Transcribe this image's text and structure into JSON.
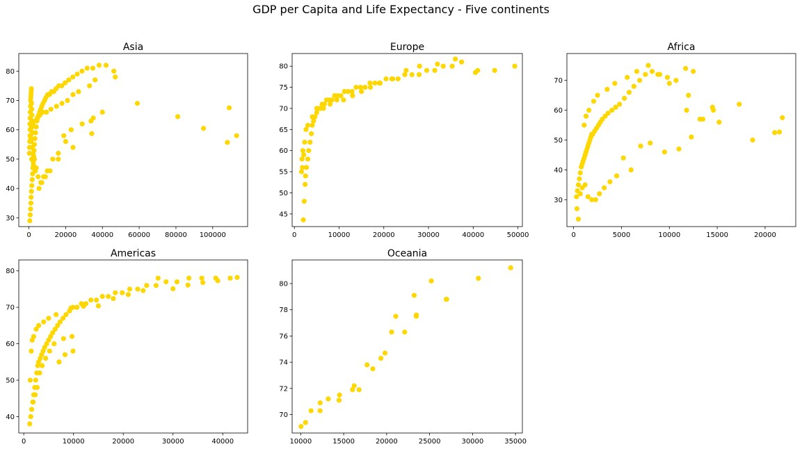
{
  "figure": {
    "title": "GDP per Capita and Life Expectancy - Five continents"
  },
  "chart_data": [
    {
      "type": "scatter",
      "title": "Asia",
      "xlabel": "",
      "ylabel": "",
      "color": "#ffd700",
      "xlim": [
        -5500,
        119000
      ],
      "ylim": [
        27,
        86
      ],
      "xticks": [
        0,
        20000,
        40000,
        60000,
        80000,
        100000
      ],
      "yticks": [
        30,
        40,
        50,
        60,
        70,
        80
      ],
      "grid": false,
      "x": [
        500,
        700,
        900,
        1100,
        1200,
        1400,
        1600,
        1800,
        2000,
        2200,
        2400,
        2600,
        2800,
        3000,
        3300,
        3600,
        4000,
        4400,
        4800,
        5300,
        5800,
        6400,
        7000,
        7700,
        8500,
        9300,
        10200,
        11200,
        12300,
        13500,
        14800,
        16300,
        17900,
        19700,
        21700,
        23900,
        26300,
        28900,
        31700,
        34800,
        38200,
        42000,
        46200,
        47000,
        36000,
        33000,
        27000,
        24000,
        21000,
        18000,
        15000,
        12000,
        9500,
        7500,
        6000,
        4500,
        3200,
        2100,
        1300,
        800,
        600,
        450,
        350,
        300,
        1000,
        1500,
        2500,
        3500,
        5000,
        6500,
        8000,
        10000,
        13000,
        16000,
        19000,
        23000,
        29000,
        35000,
        40000,
        59000,
        81000,
        95000,
        108000,
        109000,
        113000,
        33800,
        34200,
        24000,
        20000,
        16000,
        11500,
        9000,
        7000,
        5500,
        4000,
        3000,
        2300,
        1700,
        1200,
        900,
        700,
        550,
        650,
        750,
        850,
        950,
        1050,
        1150,
        1250,
        1350,
        1450,
        1550,
        1650,
        1750,
        1850,
        1950
      ],
      "y": [
        29,
        31,
        33,
        35,
        37,
        39,
        41,
        43,
        45,
        47,
        49,
        51,
        53,
        55,
        57,
        59,
        61,
        63,
        64,
        65,
        66,
        67,
        68,
        69,
        70,
        71,
        72,
        72,
        73,
        73,
        74,
        75,
        75,
        76,
        77,
        78,
        79,
        80,
        81,
        81,
        82,
        82,
        80,
        78,
        77,
        75,
        73,
        72,
        70,
        69,
        68,
        67,
        66,
        66,
        65,
        64,
        63,
        62,
        61,
        60,
        58,
        56,
        54,
        52,
        57,
        50,
        48,
        46,
        44,
        42,
        44,
        46,
        50,
        52,
        58,
        60,
        62,
        64,
        66,
        69,
        64.5,
        60.5,
        55.7,
        67.5,
        58,
        63,
        58.7,
        54,
        56,
        50,
        46,
        44,
        42,
        40,
        47,
        50,
        52,
        54,
        56,
        58,
        60,
        62,
        64,
        66,
        68,
        70,
        71,
        72,
        73,
        74,
        69,
        67,
        65,
        63,
        61,
        59
      ]
    },
    {
      "type": "scatter",
      "title": "Europe",
      "xlabel": "",
      "ylabel": "",
      "color": "#ffd700",
      "xlim": [
        -500,
        51000
      ],
      "ylim": [
        42,
        83
      ],
      "xticks": [
        0,
        10000,
        20000,
        30000,
        40000,
        50000
      ],
      "yticks": [
        45,
        50,
        55,
        60,
        65,
        70,
        75,
        80
      ],
      "grid": false,
      "x": [
        2000,
        2200,
        2400,
        2500,
        2700,
        3000,
        3200,
        3500,
        3800,
        4000,
        4300,
        4600,
        5000,
        5400,
        5800,
        6200,
        6700,
        7200,
        7800,
        8400,
        9000,
        9700,
        10400,
        11200,
        12000,
        12900,
        13800,
        14800,
        15800,
        16900,
        18000,
        19200,
        20500,
        21800,
        23200,
        24700,
        26300,
        27900,
        29600,
        31400,
        33300,
        35300,
        37400,
        41000,
        44800,
        49300,
        40500,
        36000,
        32000,
        28000,
        25000,
        22000,
        19000,
        17000,
        15000,
        13000,
        11000,
        9500,
        8000,
        6500,
        5000,
        4000,
        3000,
        2600,
        2300,
        1900,
        1700,
        1600,
        1800,
        2100
      ],
      "y": [
        43.6,
        48,
        52,
        54,
        56,
        58,
        60,
        62,
        64,
        66,
        67,
        68,
        69,
        70,
        70,
        71,
        71,
        72,
        72,
        72,
        73,
        73,
        73,
        74,
        74,
        74,
        75,
        75,
        75,
        76,
        76,
        76,
        77,
        77,
        77,
        78,
        78,
        78,
        79,
        79,
        80,
        80,
        81,
        79,
        79,
        80,
        78.5,
        81.7,
        80.5,
        80,
        79,
        77,
        76,
        75,
        74,
        73,
        72,
        72,
        71,
        70,
        70,
        68,
        66,
        65,
        62,
        60,
        58,
        55,
        56,
        59
      ]
    },
    {
      "type": "scatter",
      "title": "Africa",
      "xlabel": "",
      "ylabel": "",
      "color": "#ffd700",
      "xlim": [
        -700,
        23200
      ],
      "ylim": [
        21,
        79
      ],
      "xticks": [
        0,
        5000,
        10000,
        15000,
        20000
      ],
      "yticks": [
        30,
        40,
        50,
        60,
        70
      ],
      "grid": false,
      "x": [
        300,
        400,
        500,
        600,
        700,
        800,
        900,
        1000,
        1100,
        1200,
        1300,
        1400,
        1500,
        1600,
        1700,
        1800,
        1900,
        2000,
        2200,
        2400,
        2600,
        2800,
        3000,
        3300,
        3600,
        4000,
        4400,
        4800,
        5300,
        5800,
        6300,
        6900,
        7500,
        8200,
        9000,
        9800,
        10700,
        11700,
        12500,
        13500,
        14500,
        15200,
        17300,
        18700,
        21000,
        21500,
        21800,
        12000,
        11000,
        9500,
        8000,
        7000,
        6000,
        5200,
        4500,
        3800,
        3200,
        2700,
        2300,
        1900,
        1500,
        1200,
        900,
        700,
        500,
        350,
        1100,
        1300,
        1600,
        2100,
        2500,
        3500,
        4300,
        5600,
        6600,
        7800,
        8800,
        10000,
        11800,
        12300,
        13200,
        14600
      ],
      "y": [
        31,
        33,
        35,
        37,
        39,
        41,
        42,
        43,
        44,
        45,
        46,
        47,
        48,
        49,
        50,
        51,
        52,
        52,
        53,
        54,
        55,
        56,
        57,
        58,
        59,
        60,
        61,
        62,
        64,
        66,
        68,
        70,
        72,
        73,
        72,
        71,
        70,
        74,
        73,
        57,
        61,
        56,
        62,
        50,
        52.5,
        52.7,
        57.5,
        65,
        47,
        46,
        49,
        48,
        40,
        44,
        38,
        36,
        34,
        32,
        30,
        30,
        31,
        35,
        34,
        32,
        23.5,
        27,
        55,
        58,
        60,
        63,
        65,
        67,
        69,
        71,
        73,
        75,
        72,
        69,
        60,
        51,
        57,
        60
      ]
    },
    {
      "type": "scatter",
      "title": "Americas",
      "xlabel": "",
      "ylabel": "",
      "color": "#ffd700",
      "xlim": [
        -1000,
        45000
      ],
      "ylim": [
        35.5,
        83
      ],
      "xticks": [
        0,
        10000,
        20000,
        30000,
        40000
      ],
      "yticks": [
        40,
        50,
        60,
        70,
        80
      ],
      "grid": false,
      "x": [
        1200,
        1400,
        1600,
        1800,
        2000,
        2200,
        2400,
        2600,
        2800,
        3000,
        3300,
        3600,
        3900,
        4200,
        4600,
        5000,
        5400,
        5800,
        6300,
        6800,
        7300,
        7900,
        8500,
        9200,
        9900,
        10700,
        11600,
        12500,
        13500,
        14600,
        15800,
        17000,
        18400,
        19800,
        21300,
        22900,
        24700,
        26600,
        28600,
        30800,
        33200,
        35800,
        38600,
        41500,
        42900,
        39000,
        36000,
        33000,
        30000,
        27000,
        24000,
        21000,
        18000,
        15000,
        12000,
        9500,
        8000,
        6500,
        5000,
        4000,
        3000,
        2500,
        2000,
        1700,
        1500,
        1300,
        1900,
        2300,
        2700,
        3200,
        3700,
        4400,
        5200,
        6100,
        7100,
        8300,
        9700,
        9900
      ],
      "y": [
        38,
        40,
        42,
        44,
        46,
        48,
        50,
        52,
        54,
        55,
        56,
        57,
        58,
        59,
        60,
        61,
        62,
        63,
        64,
        65,
        66,
        67,
        68,
        69,
        70,
        70,
        71,
        71,
        72,
        72,
        73,
        73,
        74,
        74,
        75,
        75,
        76,
        76,
        77,
        77,
        78,
        78,
        78,
        78,
        78.2,
        77.3,
        76.8,
        76.1,
        75.1,
        78,
        74.6,
        73.5,
        72.4,
        70.4,
        70.3,
        69.8,
        61.4,
        68,
        67,
        66,
        65,
        64,
        62,
        61,
        58,
        50,
        44,
        46,
        48,
        52,
        54,
        56,
        58,
        60,
        55,
        57,
        62,
        58
      ]
    },
    {
      "type": "scatter",
      "title": "Oceania",
      "xlabel": "",
      "ylabel": "",
      "color": "#ffd700",
      "xlim": [
        9000,
        35800
      ],
      "ylim": [
        68.6,
        81.8
      ],
      "xticks": [
        10000,
        15000,
        20000,
        25000,
        30000,
        35000
      ],
      "yticks": [
        70,
        72,
        74,
        76,
        78,
        80
      ],
      "grid": false,
      "x": [
        10040,
        10560,
        11200,
        12250,
        12260,
        13200,
        14460,
        14520,
        16020,
        16220,
        16790,
        17720,
        18390,
        19330,
        19810,
        20580,
        21060,
        22100,
        23200,
        23450,
        23460,
        25200,
        26940,
        26990,
        30680,
        34440
      ],
      "y": [
        69.1,
        69.4,
        70.3,
        70.3,
        70.9,
        71.2,
        71.1,
        71.5,
        71.9,
        72.2,
        71.9,
        73.8,
        73.5,
        74.3,
        74.7,
        76.3,
        77.5,
        76.3,
        79.1,
        77.5,
        77.6,
        80.2,
        78.8,
        78.8,
        80.4,
        81.2
      ]
    }
  ]
}
